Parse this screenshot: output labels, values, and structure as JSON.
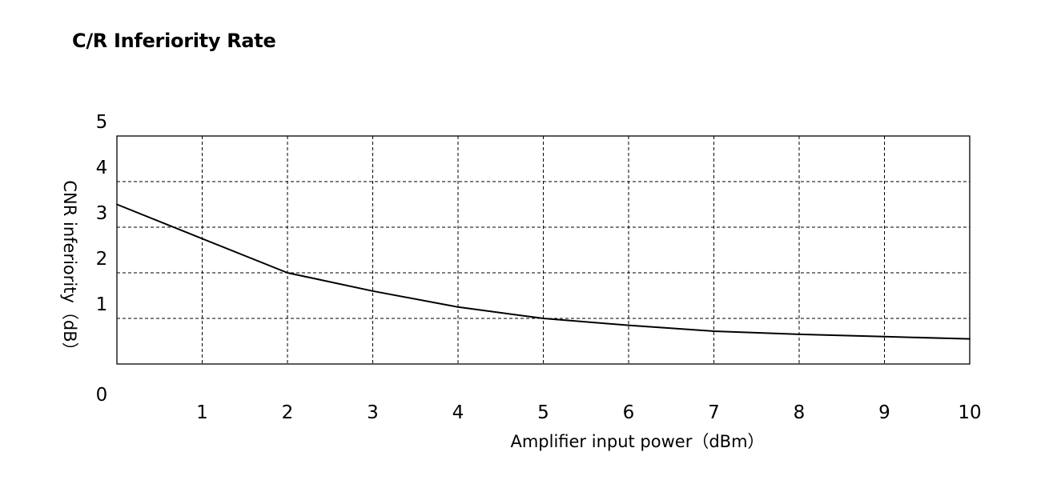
{
  "chart_data": {
    "type": "line",
    "title": "C/R Inferiority Rate",
    "xlabel": "Amplifier input power（dBm）",
    "ylabel": "CNR inferiority（dB）",
    "xlim": [
      0,
      10
    ],
    "ylim": [
      0,
      5
    ],
    "x_ticks": [
      "1",
      "2",
      "3",
      "4",
      "5",
      "6",
      "7",
      "8",
      "9",
      "10"
    ],
    "y_ticks": [
      "0",
      "1",
      "2",
      "3",
      "4",
      "5"
    ],
    "grid": true,
    "grid_style": "dashed",
    "legend": false,
    "line_color": "#000000",
    "series": [
      {
        "x": [
          0,
          1,
          2,
          3,
          4,
          5,
          6,
          7,
          8,
          9,
          10
        ],
        "y": [
          3.5,
          2.75,
          2.0,
          1.6,
          1.25,
          1.0,
          0.85,
          0.72,
          0.65,
          0.6,
          0.55
        ]
      }
    ]
  }
}
